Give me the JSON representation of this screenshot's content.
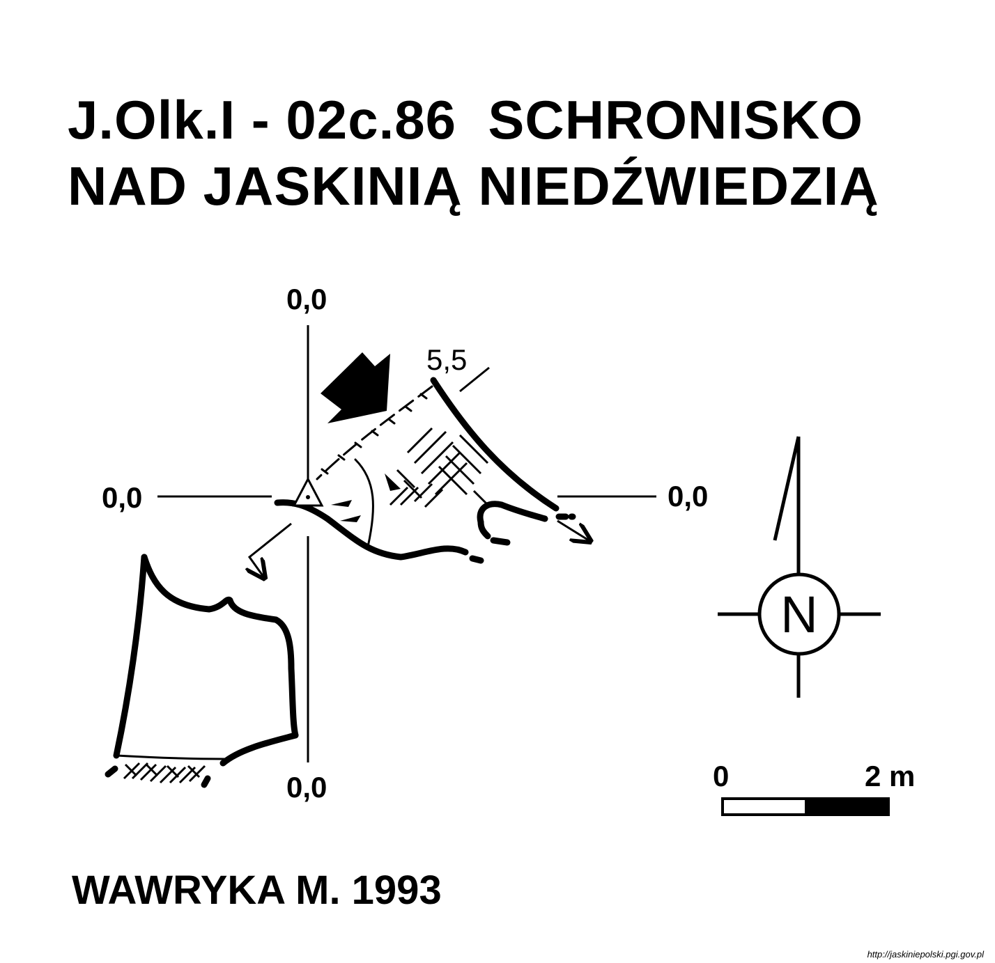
{
  "title": {
    "line1": "J.Olk.I - 02c.86  SCHRONISKO",
    "line2": "NAD JASKINIĄ NIEDŹWIEDZIĄ"
  },
  "cross_section_labels": {
    "top": "0,0",
    "left": "0,0",
    "right": "0,0",
    "bottom": "0,0"
  },
  "depth_marker": "5,5",
  "north_arrow": {
    "letter": "N",
    "icon": "north-arrow-icon"
  },
  "scale_bar": {
    "start_label": "0",
    "end_label": "2 m"
  },
  "author": "WAWRYKA M. 1993",
  "source_url": "http://jaskiniepolski.pgi.gov.pl",
  "colors": {
    "ink": "#000000",
    "background": "#ffffff"
  }
}
